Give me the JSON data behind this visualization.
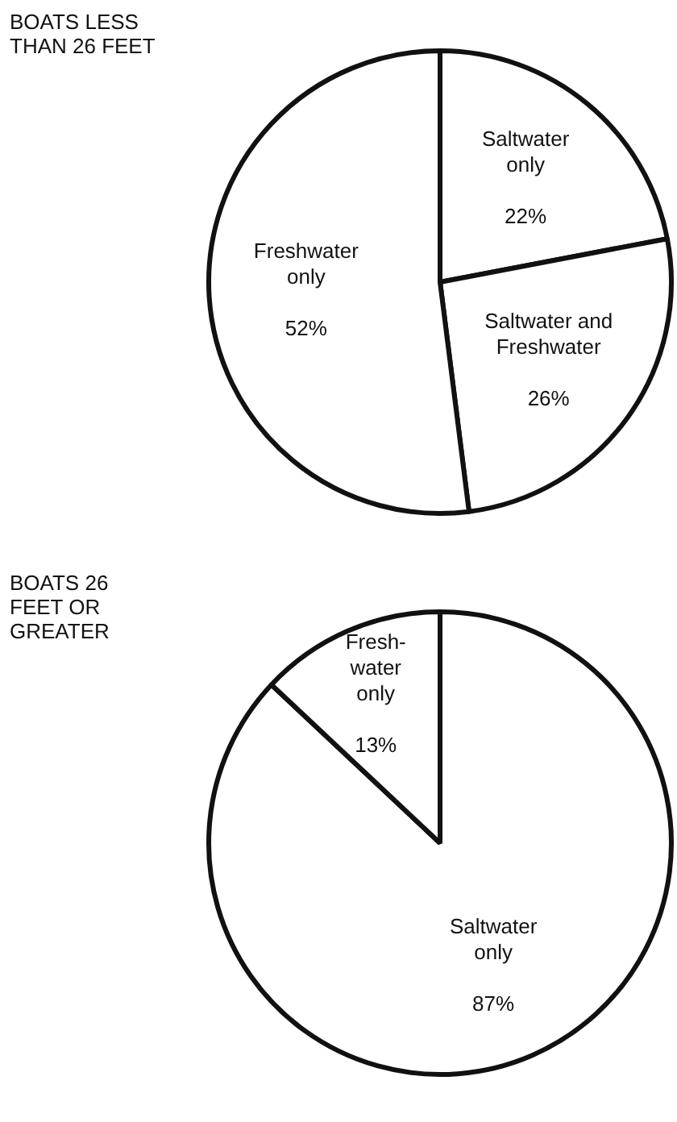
{
  "chart_data": [
    {
      "type": "pie",
      "title": "BOATS LESS THAN 26 FEET",
      "categories": [
        "Saltwater only",
        "Saltwater and Freshwater",
        "Freshwater only"
      ],
      "values": [
        22,
        26,
        52
      ],
      "value_labels": [
        "22%",
        "26%",
        "52%"
      ],
      "colors": [
        "#ffffff",
        "#ffffff",
        "#ffffff"
      ],
      "legend": false
    },
    {
      "type": "pie",
      "title": "BOATS 26 FEET OR GREATER",
      "categories": [
        "Saltwater only",
        "Fresh-water only"
      ],
      "values": [
        87,
        13
      ],
      "value_labels": [
        "87%",
        "13%"
      ],
      "colors": [
        "#ffffff",
        "#ffffff"
      ],
      "legend": false
    }
  ]
}
